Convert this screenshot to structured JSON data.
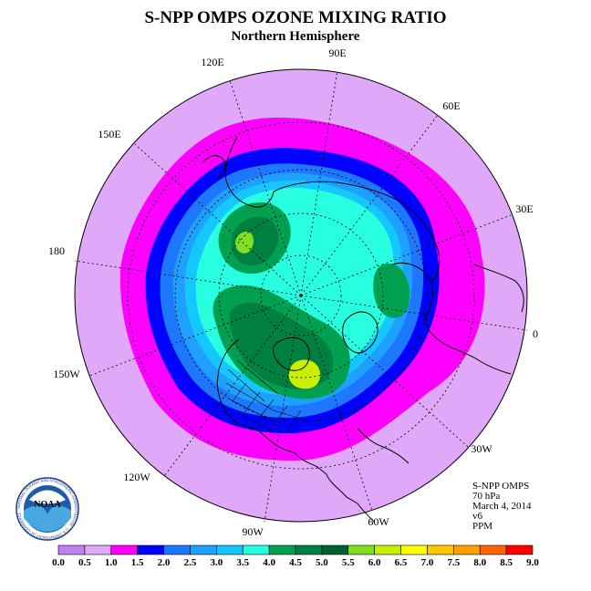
{
  "header": {
    "title": "S-NPP OMPS OZONE MIXING RATIO",
    "subtitle": "Northern Hemisphere"
  },
  "longitude_labels": [
    "90E",
    "60E",
    "30E",
    "0",
    "30W",
    "60W",
    "90W",
    "120W",
    "150W",
    "180",
    "150E",
    "120E"
  ],
  "info": {
    "instrument": "S-NPP OMPS",
    "level": "70 hPa",
    "date": "March 4, 2014",
    "version": "v6",
    "units": "PPM"
  },
  "logo": {
    "text": "NOAA",
    "ring_text": "NATIONAL OCEANIC AND ATMOSPHERIC ADMINISTRATION · U.S. DEPARTMENT OF COMMERCE"
  },
  "colorbar": {
    "ticks": [
      "0.0",
      "0.5",
      "1.0",
      "1.5",
      "2.0",
      "2.5",
      "3.0",
      "3.5",
      "4.0",
      "4.5",
      "5.0",
      "5.5",
      "6.0",
      "6.5",
      "7.0",
      "7.5",
      "8.0",
      "8.5",
      "9.0"
    ],
    "colors": [
      "#c080f0",
      "#e0a8f8",
      "#ff00ff",
      "#0000ff",
      "#1e78ff",
      "#1ea0ff",
      "#14c8ff",
      "#28ffe0",
      "#00a050",
      "#008040",
      "#006030",
      "#80e020",
      "#c8f000",
      "#ffff00",
      "#ffc800",
      "#ffa000",
      "#ff6400",
      "#ff0000",
      "#a05030"
    ]
  },
  "colors": {
    "background_disk": "#e0a8f8",
    "outline": "#000000"
  }
}
